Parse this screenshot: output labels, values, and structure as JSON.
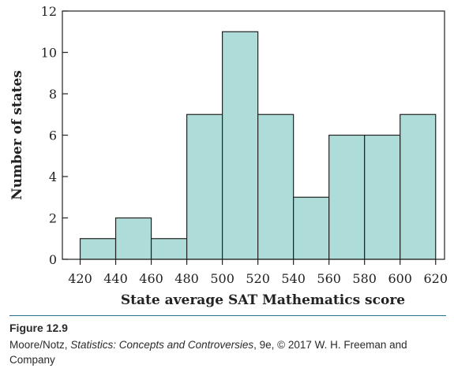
{
  "chart_data": {
    "type": "bar",
    "categories": [
      "420–440",
      "440–460",
      "460–480",
      "480–500",
      "500–520",
      "520–540",
      "540–560",
      "560–580",
      "580–600",
      "600–620"
    ],
    "bin_edges": [
      420,
      440,
      460,
      480,
      500,
      520,
      540,
      560,
      580,
      600,
      620
    ],
    "values": [
      1,
      2,
      1,
      7,
      11,
      7,
      3,
      6,
      6,
      7
    ],
    "xlabel": "State average SAT Mathematics score",
    "ylabel": "Number of states",
    "xlim": [
      410,
      625
    ],
    "ylim": [
      0,
      12
    ],
    "x_ticks": [
      420,
      440,
      460,
      480,
      500,
      520,
      540,
      560,
      580,
      600,
      620
    ],
    "y_ticks": [
      0,
      2,
      4,
      6,
      8,
      10,
      12
    ],
    "bar_color": "#aedcd8",
    "grid": false
  },
  "caption": {
    "label": "Figure 12.9",
    "credit_pre": "Moore/Notz, ",
    "credit_title": "Statistics: Concepts and Controversies",
    "credit_post": ", 9e, © 2017 W. H. Freeman and Company"
  }
}
